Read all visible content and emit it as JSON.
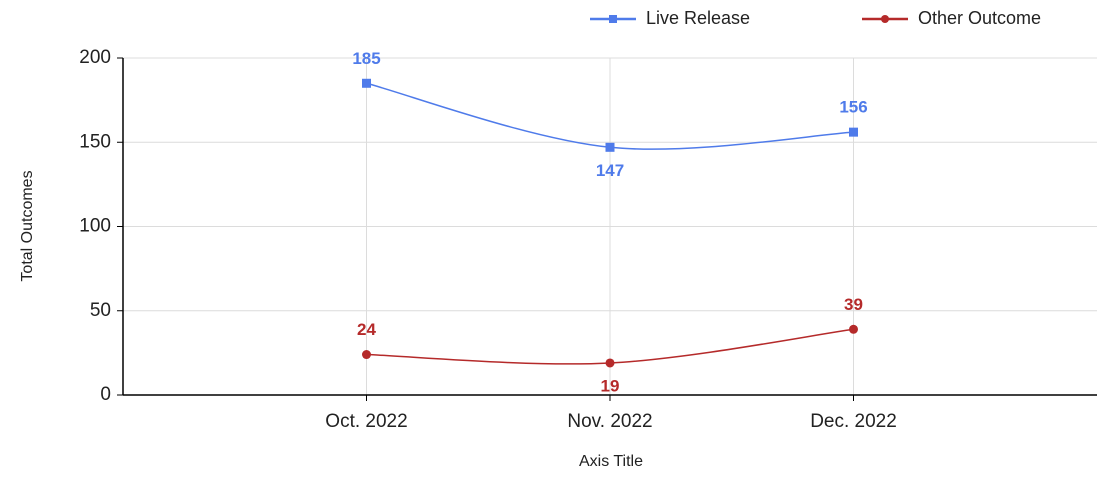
{
  "chart_data": {
    "type": "line",
    "x_label": "Axis Title",
    "y_label": "Total Outcomes",
    "categories": [
      "Oct. 2022",
      "Nov. 2022",
      "Dec. 2022"
    ],
    "series": [
      {
        "name": "Live Release",
        "color": "#4f7bea",
        "marker": "square",
        "values": [
          185,
          147,
          156
        ]
      },
      {
        "name": "Other Outcome",
        "color": "#b52a2a",
        "marker": "circle",
        "values": [
          24,
          19,
          39
        ]
      }
    ],
    "ylim": [
      0,
      200
    ],
    "yticks": [
      0,
      50,
      100,
      150,
      200
    ],
    "grid": true,
    "legend": "top-right",
    "smooth": true
  }
}
